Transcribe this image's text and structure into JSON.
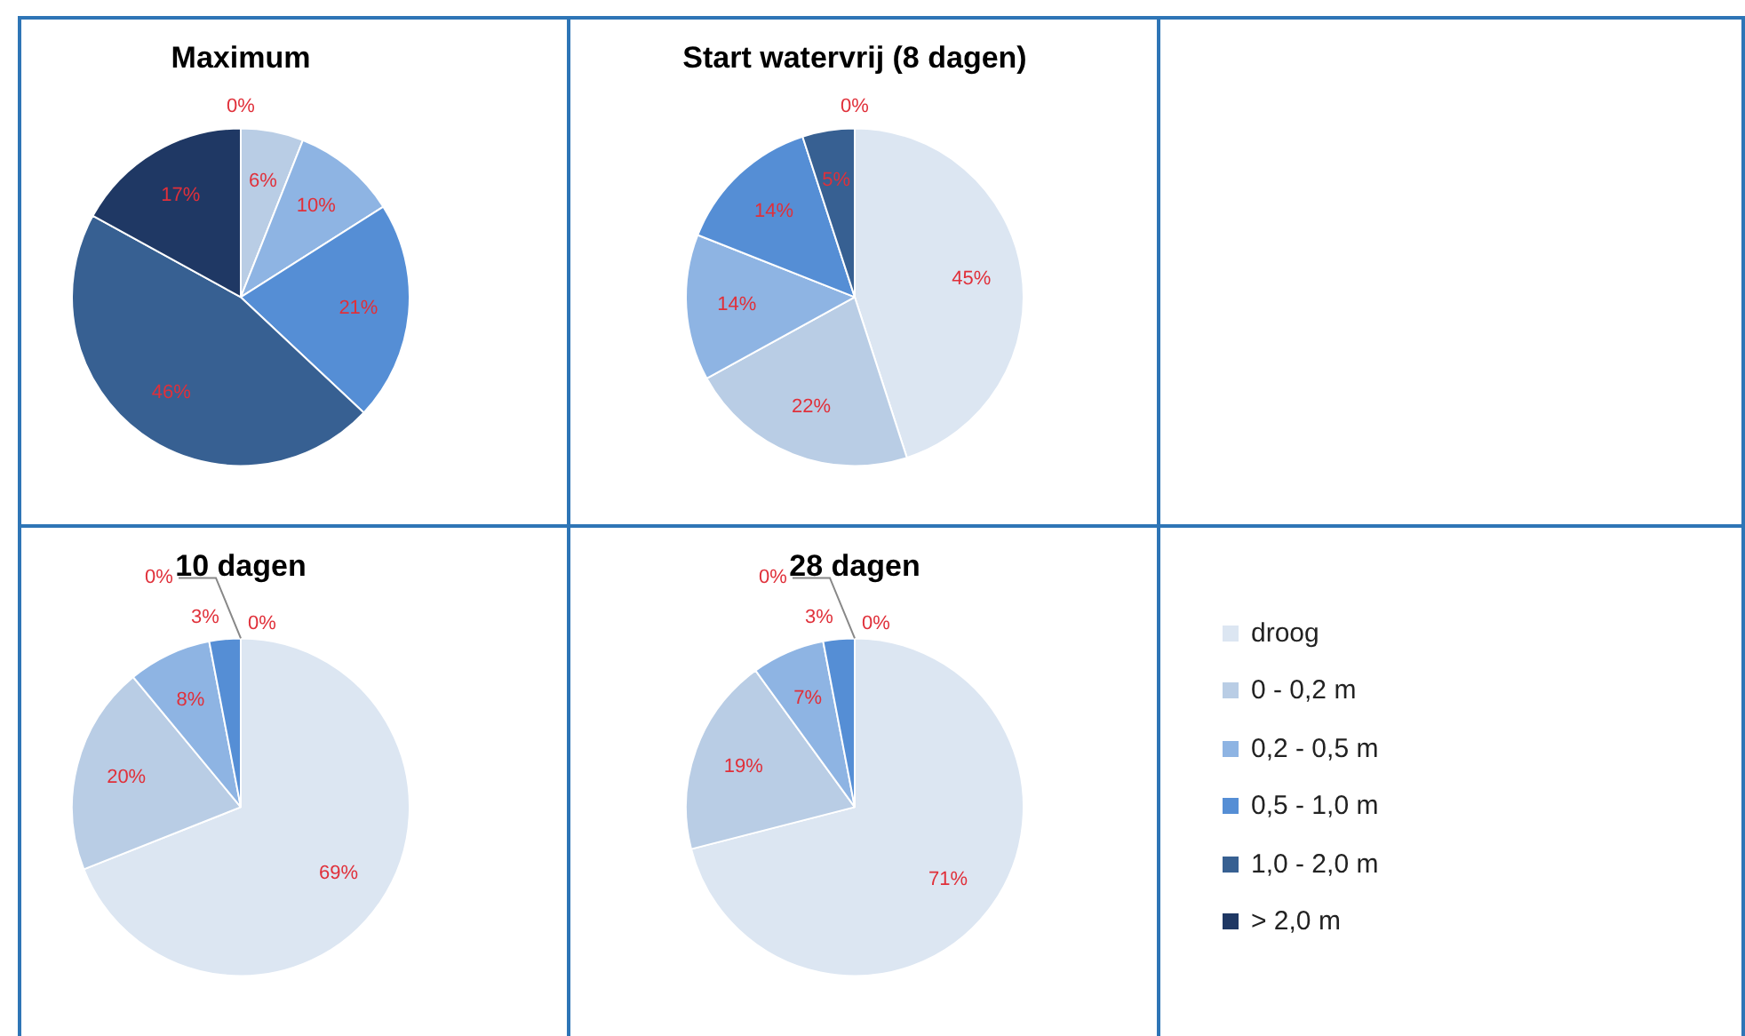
{
  "chart_data": [
    {
      "type": "pie",
      "title": "Maximum",
      "categories": [
        null,
        null,
        null,
        null,
        null,
        null
      ],
      "values": [
        0,
        6,
        10,
        21,
        46,
        17
      ],
      "value_labels": [
        "0%",
        "6%",
        "10%",
        "21%",
        "46%",
        "17%"
      ],
      "colors": [
        "#dce6f2",
        "#b9cde5",
        "#8eb4e3",
        "#558ed5",
        "#376092",
        "#1f3864"
      ]
    },
    {
      "type": "pie",
      "title": "Start watervrij (8 dagen)",
      "categories": [
        null,
        null,
        null,
        null,
        null,
        null
      ],
      "values": [
        45,
        22,
        14,
        14,
        5,
        0
      ],
      "value_labels": [
        "45%",
        "22%",
        "14%",
        "14%",
        "5%",
        "0%"
      ],
      "colors": [
        "#dce6f2",
        "#b9cde5",
        "#8eb4e3",
        "#558ed5",
        "#376092",
        "#1f3864"
      ]
    },
    {
      "type": "pie",
      "title": "10 dagen",
      "categories": [
        null,
        null,
        null,
        null,
        null,
        null
      ],
      "values": [
        69,
        20,
        8,
        3,
        0,
        0
      ],
      "value_labels": [
        "69%",
        "20%",
        "8%",
        "3%",
        "0%",
        "0%"
      ],
      "colors": [
        "#dce6f2",
        "#b9cde5",
        "#8eb4e3",
        "#558ed5",
        "#376092",
        "#1f3864"
      ]
    },
    {
      "type": "pie",
      "title": "28 dagen",
      "categories": [
        "droog",
        "0 - 0,2 m",
        "0,2 - 0,5 m",
        "0,5 - 1,0 m",
        "1,0 - 2,0 m",
        "> 2,0 m"
      ],
      "values": [
        71,
        19,
        7,
        3,
        0,
        0
      ],
      "value_labels": [
        "71%",
        "19%",
        "7%",
        "3%",
        "0%",
        "0%"
      ],
      "colors": [
        "#dce6f2",
        "#b9cde5",
        "#8eb4e3",
        "#558ed5",
        "#376092",
        "#1f3864"
      ],
      "legend": "right"
    }
  ]
}
